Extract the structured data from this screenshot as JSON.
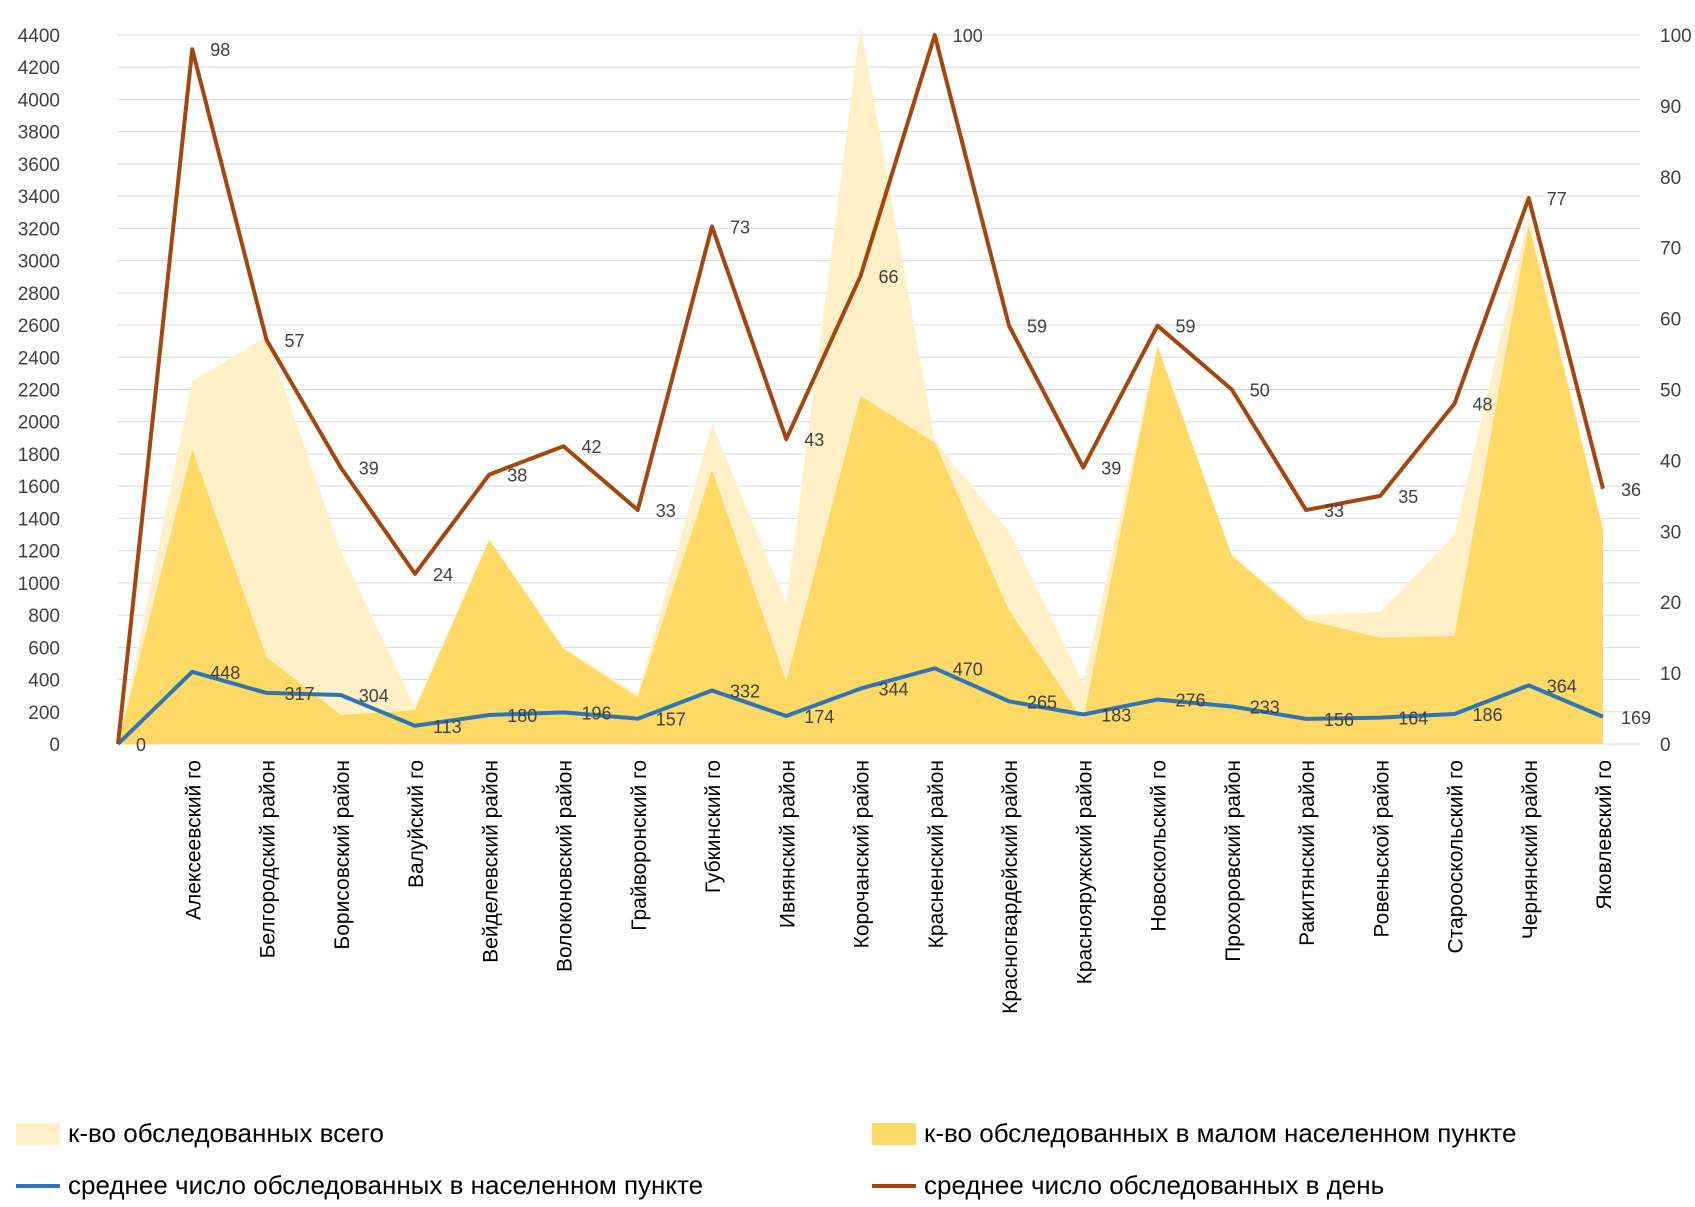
{
  "chart_data": {
    "type": "area",
    "categories": [
      "",
      "Алексеевский го",
      "Белгородский район",
      "Борисовский район",
      "Валуйский го",
      "Вейделевский район",
      "Волоконовский район",
      "Грайворонский го",
      "Губкинский го",
      "Ивнянский район",
      "Корочанский район",
      "Красненский район",
      "Красногвардейский район",
      "Краснояружский район",
      "Новоскольский го",
      "Прохоровский район",
      "Ракитянский район",
      "Ровеньской район",
      "Старооскольский  го",
      "Чернянский район",
      "Яковлевский го"
    ],
    "series": [
      {
        "name": "к-во обследованных всего",
        "kind": "area",
        "axis": "left",
        "color": "#FFF0C8",
        "values": [
          0,
          2250,
          2530,
          1200,
          230,
          1270,
          600,
          310,
          1990,
          870,
          4460,
          1880,
          1320,
          380,
          2470,
          1170,
          800,
          820,
          1300,
          3280,
          1330
        ]
      },
      {
        "name": "к-во обследованных в малом населенном пункте",
        "kind": "area",
        "axis": "left",
        "color": "#FFD966",
        "values": [
          0,
          1830,
          540,
          180,
          210,
          1270,
          590,
          290,
          1700,
          390,
          2160,
          1870,
          830,
          150,
          2470,
          1170,
          770,
          660,
          670,
          3220,
          1330
        ]
      },
      {
        "name": "среднее число обследованных в населенном пункте",
        "kind": "line",
        "axis": "left",
        "color": "#2E75B6",
        "values": [
          0,
          448,
          317,
          304,
          113,
          180,
          196,
          157,
          332,
          174,
          344,
          470,
          265,
          183,
          276,
          233,
          156,
          164,
          186,
          364,
          169
        ],
        "labels": [
          "0",
          "448",
          "317",
          "304",
          "113",
          "180",
          "196",
          "157",
          "332",
          "174",
          "344",
          "470",
          "265",
          "183",
          "276",
          "233",
          "156",
          "164",
          "186",
          "364",
          "169"
        ]
      },
      {
        "name": "среднее число обследованных в день",
        "kind": "line",
        "axis": "right",
        "color": "#A5460F",
        "values": [
          0,
          98,
          57,
          39,
          24,
          38,
          42,
          33,
          73,
          43,
          66,
          100,
          59,
          39,
          59,
          50,
          33,
          35,
          48,
          77,
          36
        ],
        "labels": [
          "",
          "98",
          "57",
          "39",
          "24",
          "38",
          "42",
          "33",
          "73",
          "43",
          "66",
          "100",
          "59",
          "39",
          "59",
          "50",
          "33",
          "35",
          "48",
          "77",
          "36"
        ]
      }
    ],
    "y_left": {
      "min": 0,
      "max": 4400,
      "step": 200,
      "ticks": [
        "0",
        "200",
        "400",
        "600",
        "800",
        "1000",
        "1200",
        "1400",
        "1600",
        "1800",
        "2000",
        "2200",
        "2400",
        "2600",
        "2800",
        "3000",
        "3200",
        "3400",
        "3600",
        "3800",
        "4000",
        "4200",
        "4400"
      ]
    },
    "y_right": {
      "min": 0,
      "max": 100,
      "step": 10,
      "ticks": [
        "0",
        "10",
        "20",
        "30",
        "40",
        "50",
        "60",
        "70",
        "80",
        "90",
        "100"
      ]
    },
    "grid": "horizontal",
    "legend_position": "bottom"
  },
  "legend": [
    {
      "label": "к-во обследованных всего",
      "type": "box",
      "color": "#FFF0C8"
    },
    {
      "label": "к-во обследованных в малом населенном пункте",
      "type": "box",
      "color": "#FFD966"
    },
    {
      "label": "среднее число обследованных в населенном пункте",
      "type": "line",
      "color": "#2E75B6"
    },
    {
      "label": "среднее число обследованных в день",
      "type": "line",
      "color": "#A5460F"
    }
  ]
}
